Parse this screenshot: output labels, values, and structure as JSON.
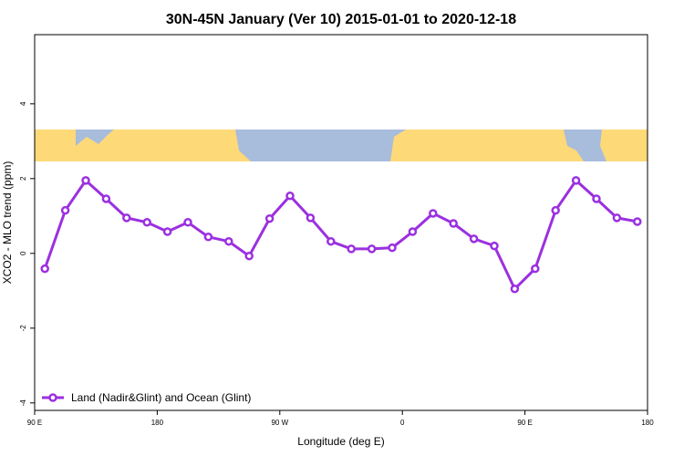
{
  "chart_data": {
    "type": "line",
    "title": "30N-45N January (Ver 10)   2015-01-01 to 2020-12-18",
    "xlabel": "Longitude (deg E)",
    "ylabel": "XCO2 - MLO trend (ppm)",
    "x": [
      97.5,
      112.5,
      127.5,
      142.5,
      157.5,
      172.5,
      187.5,
      202.5,
      217.5,
      232.5,
      247.5,
      262.5,
      277.5,
      292.5,
      307.5,
      322.5,
      337.5,
      352.5,
      367.5,
      382.5,
      397.5,
      412.5,
      427.5,
      442.5,
      457.5,
      472.5,
      487.5,
      502.5,
      517.5,
      532.5
    ],
    "series": [
      {
        "name": "Land (Nadir&Glint) and Ocean (Glint)",
        "color": "#9b30e0",
        "values": [
          -0.41,
          1.15,
          1.95,
          1.46,
          0.95,
          0.83,
          0.58,
          0.83,
          0.44,
          0.32,
          -0.07,
          0.93,
          1.54,
          0.95,
          0.32,
          0.12,
          0.12,
          0.15,
          0.58,
          1.07,
          0.8,
          0.39,
          0.2,
          -0.95,
          -0.41,
          1.15,
          1.95,
          1.46,
          0.95,
          0.85
        ]
      }
    ],
    "xlim": [
      90,
      540
    ],
    "xticks": [
      {
        "value": 90,
        "label": "90 E"
      },
      180,
      {
        "value": 270,
        "label": "90 W"
      },
      {
        "value": 360,
        "label": "0"
      },
      {
        "value": 450,
        "label": "90 E"
      },
      {
        "value": 540,
        "label": "180"
      }
    ],
    "ylim": [
      -4.2,
      5.85
    ],
    "yticks": [
      -4,
      -2,
      0,
      2,
      4
    ],
    "legend": "bottom-left"
  }
}
